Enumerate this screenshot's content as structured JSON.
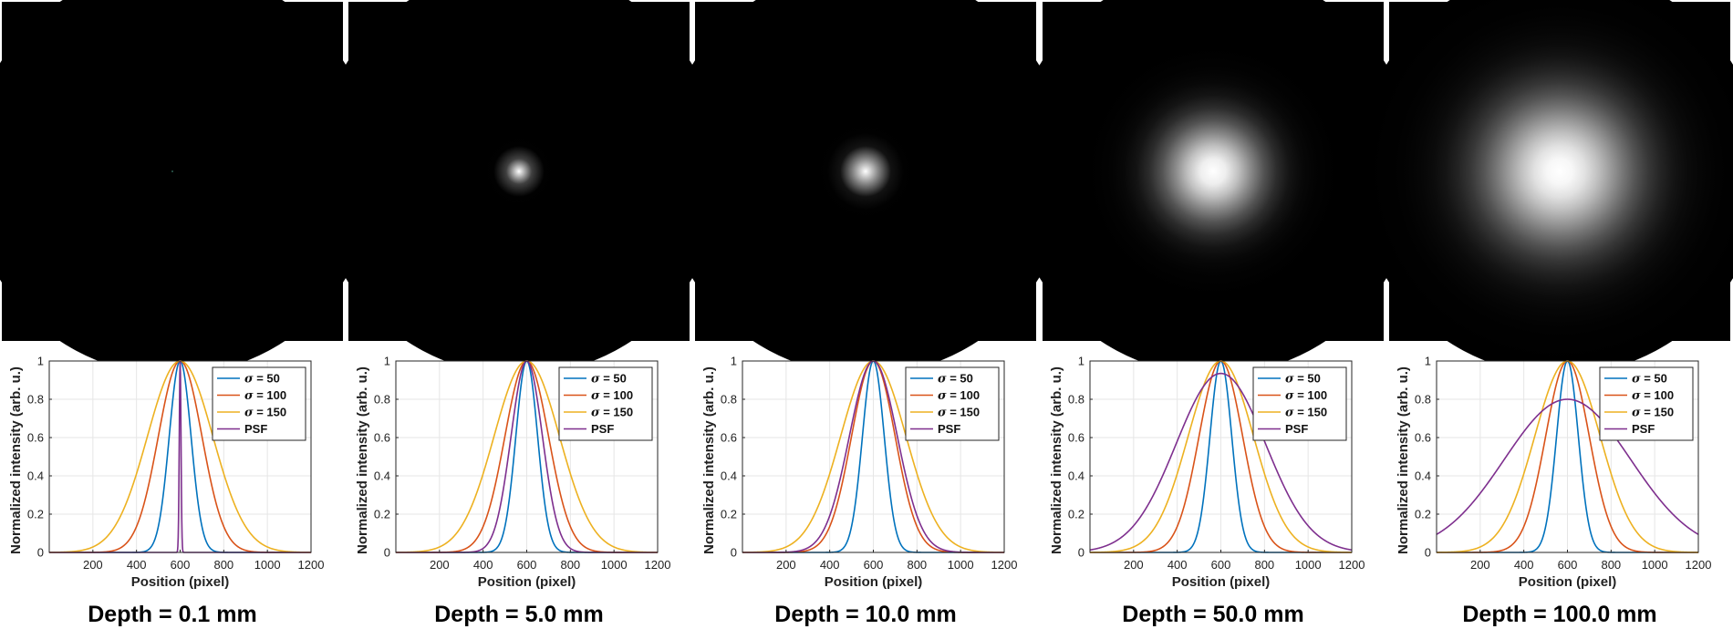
{
  "chart_data": [
    {
      "type": "line",
      "caption": "Depth = 0.1 mm",
      "psf_image_peak": 0.5,
      "psf_image_sigma": 0.0,
      "x": {
        "min": 0,
        "max": 1200,
        "ticks": [
          200,
          400,
          600,
          800,
          1000,
          1200
        ]
      },
      "ylim": [
        0,
        1
      ],
      "yticks": [
        0,
        0.2,
        0.4,
        0.6,
        0.8,
        1
      ],
      "xlabel": "Position (pixel)",
      "ylabel": "Normalized intensity (arb. u.)",
      "series": [
        {
          "name": "σ = 50",
          "sigma_symbol": "σ",
          "sigma_value": "= 50",
          "sigma": 50,
          "peak": 1,
          "color": "#0072bd"
        },
        {
          "name": "σ = 100",
          "sigma_symbol": "σ",
          "sigma_value": "= 100",
          "sigma": 100,
          "peak": 1,
          "color": "#d95319"
        },
        {
          "name": "σ = 150",
          "sigma_symbol": "σ",
          "sigma_value": "= 150",
          "sigma": 150,
          "peak": 1,
          "color": "#edb120"
        },
        {
          "name": "PSF",
          "sigma": 4,
          "peak": 1,
          "color": "#7e2f8e"
        }
      ]
    },
    {
      "type": "line",
      "caption": "Depth = 5.0 mm",
      "psf_image_peak": 1.0,
      "psf_image_sigma": 0.045,
      "x": {
        "min": 0,
        "max": 1200,
        "ticks": [
          200,
          400,
          600,
          800,
          1000,
          1200
        ]
      },
      "ylim": [
        0,
        1
      ],
      "yticks": [
        0,
        0.2,
        0.4,
        0.6,
        0.8,
        1
      ],
      "xlabel": "Position (pixel)",
      "ylabel": "Normalized intensity (arb. u.)",
      "series": [
        {
          "name": "σ = 50",
          "sigma_symbol": "σ",
          "sigma_value": "= 50",
          "sigma": 50,
          "peak": 1,
          "color": "#0072bd"
        },
        {
          "name": "σ = 100",
          "sigma_symbol": "σ",
          "sigma_value": "= 100",
          "sigma": 100,
          "peak": 1,
          "color": "#d95319"
        },
        {
          "name": "σ = 150",
          "sigma_symbol": "σ",
          "sigma_value": "= 150",
          "sigma": 150,
          "peak": 1,
          "color": "#edb120"
        },
        {
          "name": "PSF",
          "sigma": 72,
          "peak": 1,
          "color": "#7e2f8e"
        }
      ]
    },
    {
      "type": "line",
      "caption": "Depth = 10.0 mm",
      "psf_image_peak": 1.0,
      "psf_image_sigma": 0.065,
      "x": {
        "min": 0,
        "max": 1200,
        "ticks": [
          200,
          400,
          600,
          800,
          1000,
          1200
        ]
      },
      "ylim": [
        0,
        1
      ],
      "yticks": [
        0,
        0.2,
        0.4,
        0.6,
        0.8,
        1
      ],
      "xlabel": "Position (pixel)",
      "ylabel": "Normalized intensity (arb. u.)",
      "series": [
        {
          "name": "σ = 50",
          "sigma_symbol": "σ",
          "sigma_value": "= 50",
          "sigma": 50,
          "peak": 1,
          "color": "#0072bd"
        },
        {
          "name": "σ = 100",
          "sigma_symbol": "σ",
          "sigma_value": "= 100",
          "sigma": 100,
          "peak": 1,
          "color": "#d95319"
        },
        {
          "name": "σ = 150",
          "sigma_symbol": "σ",
          "sigma_value": "= 150",
          "sigma": 150,
          "peak": 1,
          "color": "#edb120"
        },
        {
          "name": "PSF",
          "sigma": 110,
          "peak": 1,
          "color": "#7e2f8e"
        }
      ]
    },
    {
      "type": "line",
      "caption": "Depth = 50.0 mm",
      "psf_image_peak": 1.0,
      "psf_image_sigma": 0.2,
      "x": {
        "min": 0,
        "max": 1200,
        "ticks": [
          200,
          400,
          600,
          800,
          1000,
          1200
        ]
      },
      "ylim": [
        0,
        1
      ],
      "yticks": [
        0,
        0.2,
        0.4,
        0.6,
        0.8,
        1
      ],
      "xlabel": "Position (pixel)",
      "ylabel": "Normalized intensity (arb. u.)",
      "series": [
        {
          "name": "σ = 50",
          "sigma_symbol": "σ",
          "sigma_value": "= 50",
          "sigma": 50,
          "peak": 1,
          "color": "#0072bd"
        },
        {
          "name": "σ = 100",
          "sigma_symbol": "σ",
          "sigma_value": "= 100",
          "sigma": 100,
          "peak": 1,
          "color": "#d95319"
        },
        {
          "name": "σ = 150",
          "sigma_symbol": "σ",
          "sigma_value": "= 150",
          "sigma": 150,
          "peak": 1,
          "color": "#edb120"
        },
        {
          "name": "PSF",
          "sigma": 205,
          "peak": 0.935,
          "color": "#7e2f8e"
        }
      ]
    },
    {
      "type": "line",
      "caption": "Depth = 100.0 mm",
      "psf_image_peak": 1.0,
      "psf_image_sigma": 0.3,
      "x": {
        "min": 0,
        "max": 1200,
        "ticks": [
          200,
          400,
          600,
          800,
          1000,
          1200
        ]
      },
      "ylim": [
        0,
        1
      ],
      "yticks": [
        0,
        0.2,
        0.4,
        0.6,
        0.8,
        1
      ],
      "xlabel": "Position (pixel)",
      "ylabel": "Normalized intensity (arb. u.)",
      "series": [
        {
          "name": "σ = 50",
          "sigma_symbol": "σ",
          "sigma_value": "= 50",
          "sigma": 50,
          "peak": 1,
          "color": "#0072bd"
        },
        {
          "name": "σ = 100",
          "sigma_symbol": "σ",
          "sigma_value": "= 100",
          "sigma": 100,
          "peak": 1,
          "color": "#d95319"
        },
        {
          "name": "σ = 150",
          "sigma_symbol": "σ",
          "sigma_value": "= 150",
          "sigma": 150,
          "peak": 1,
          "color": "#edb120"
        },
        {
          "name": "PSF",
          "sigma": 290,
          "peak": 0.8,
          "color": "#7e2f8e"
        }
      ]
    }
  ]
}
